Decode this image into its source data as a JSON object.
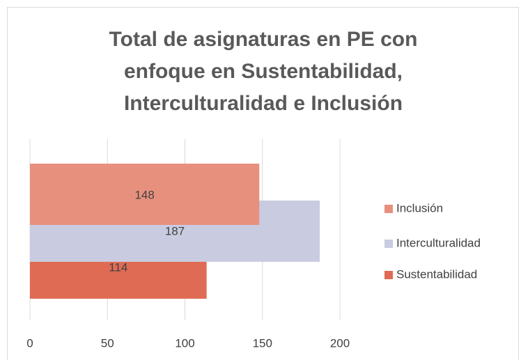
{
  "chart_data": {
    "type": "bar",
    "orientation": "horizontal",
    "title": "Total de asignaturas en PE con enfoque en Sustentabilidad, Interculturalidad e Inclusión",
    "categories": [
      null
    ],
    "series": [
      {
        "name": "Sustentabilidad",
        "color": "#e06b55",
        "values": [
          114
        ]
      },
      {
        "name": "Interculturalidad",
        "color": "#c9cce0",
        "values": [
          187
        ]
      },
      {
        "name": "Inclusión",
        "color": "#e8907e",
        "values": [
          148
        ]
      }
    ],
    "xlim": [
      0,
      200
    ],
    "xticks": [
      0,
      50,
      100,
      150,
      200
    ],
    "grid": true,
    "legend": "right"
  }
}
